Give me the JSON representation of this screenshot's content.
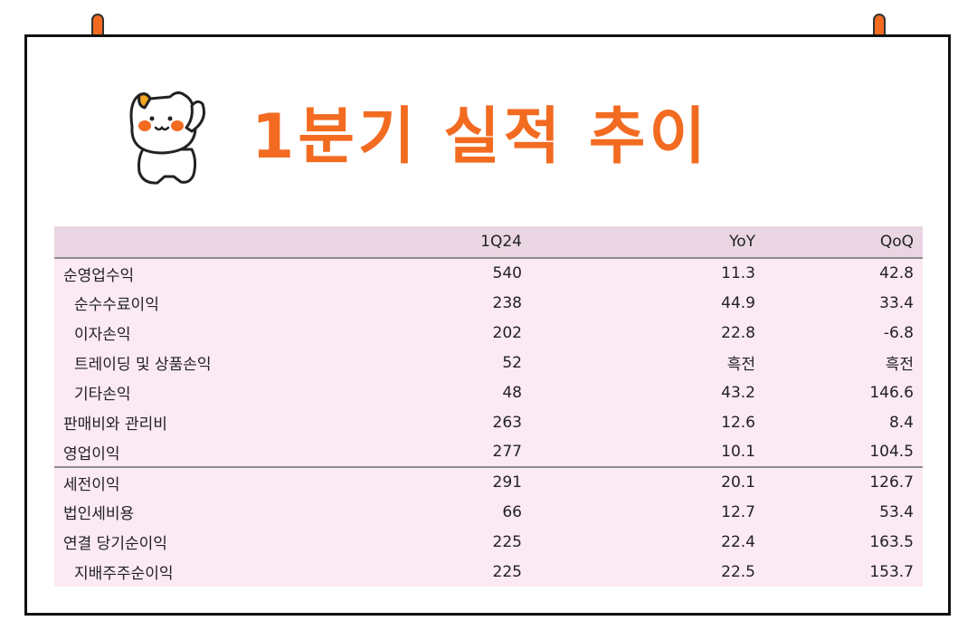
{
  "title": "1분기 실적 추이",
  "colors": {
    "accent": "#f26b21",
    "header_bg": "#ead6e2",
    "row_bg": "#fbe9f3"
  },
  "icons": {
    "mascot": "cat-mascot-icon",
    "pins": "binder-pin-icon"
  },
  "table": {
    "columns": [
      "",
      "1Q24",
      "YoY",
      "QoQ"
    ],
    "rows": [
      {
        "label": "순영업수익",
        "q": "540",
        "yoy": "11.3",
        "qoq": "42.8",
        "indent": false,
        "section_start": false
      },
      {
        "label": "순수수료이익",
        "q": "238",
        "yoy": "44.9",
        "qoq": "33.4",
        "indent": true,
        "section_start": false
      },
      {
        "label": "이자손익",
        "q": "202",
        "yoy": "22.8",
        "qoq": "-6.8",
        "indent": true,
        "section_start": false
      },
      {
        "label": "트레이딩 및 상품손익",
        "q": "52",
        "yoy": "흑전",
        "qoq": "흑전",
        "indent": true,
        "section_start": false
      },
      {
        "label": "기타손익",
        "q": "48",
        "yoy": "43.2",
        "qoq": "146.6",
        "indent": true,
        "section_start": false
      },
      {
        "label": "판매비와 관리비",
        "q": "263",
        "yoy": "12.6",
        "qoq": "8.4",
        "indent": false,
        "section_start": false
      },
      {
        "label": "영업이익",
        "q": "277",
        "yoy": "10.1",
        "qoq": "104.5",
        "indent": false,
        "section_start": false
      },
      {
        "label": "세전이익",
        "q": "291",
        "yoy": "20.1",
        "qoq": "126.7",
        "indent": false,
        "section_start": true
      },
      {
        "label": "법인세비용",
        "q": "66",
        "yoy": "12.7",
        "qoq": "53.4",
        "indent": false,
        "section_start": false
      },
      {
        "label": "연결 당기순이익",
        "q": "225",
        "yoy": "22.4",
        "qoq": "163.5",
        "indent": false,
        "section_start": false
      },
      {
        "label": "지배주주순이익",
        "q": "225",
        "yoy": "22.5",
        "qoq": "153.7",
        "indent": true,
        "section_start": false
      }
    ]
  }
}
